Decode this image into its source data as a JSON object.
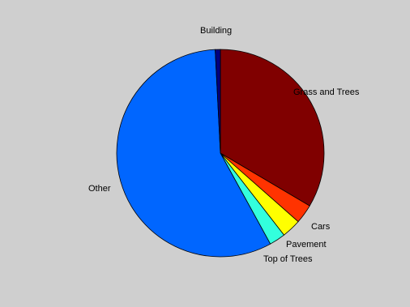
{
  "chart_data": {
    "type": "pie",
    "title": "",
    "slices": [
      {
        "label": "Grass and Trees",
        "value": 33.5,
        "color": "#800000"
      },
      {
        "label": "Cars",
        "value": 3.0,
        "color": "#ff3300"
      },
      {
        "label": "Pavement",
        "value": 3.0,
        "color": "#ffff00"
      },
      {
        "label": "Top of Trees",
        "value": 2.5,
        "color": "#33ffdd"
      },
      {
        "label": "Other",
        "value": 57.2,
        "color": "#0066ff"
      },
      {
        "label": "Building",
        "value": 0.8,
        "color": "#000080"
      }
    ]
  }
}
